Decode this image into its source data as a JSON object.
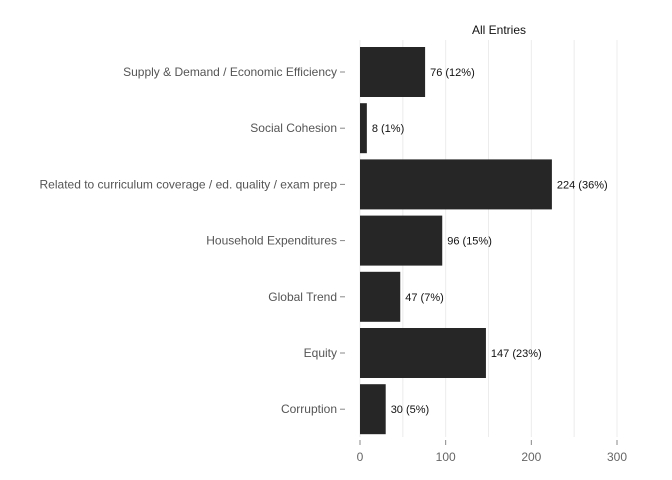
{
  "chart_data": {
    "type": "bar",
    "orientation": "horizontal",
    "title": "All Entries",
    "categories": [
      "Supply & Demand / Economic Efficiency",
      "Social Cohesion",
      "Related to curriculum coverage / ed. quality / exam prep",
      "Household Expenditures",
      "Global Trend",
      "Equity",
      "Corruption"
    ],
    "values": [
      76,
      8,
      224,
      96,
      47,
      147,
      30
    ],
    "data_labels": [
      "76 (12%)",
      "8 (1%)",
      "224 (36%)",
      "96 (15%)",
      "47 (7%)",
      "147 (23%)",
      "30 (5%)"
    ],
    "xlim": [
      0,
      300
    ],
    "xticks": [
      "0",
      "100",
      "200",
      "300"
    ],
    "bar_color": "#262626",
    "grid": true,
    "grid_color": "#ececec"
  }
}
